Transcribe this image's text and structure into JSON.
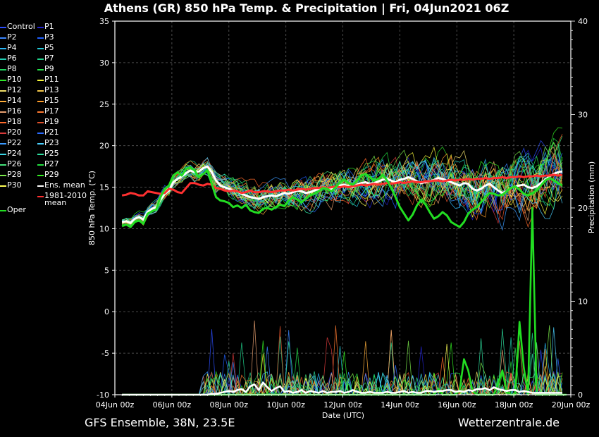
{
  "title": "Athens  (GR)  850 hPa Temp. & Precipitation | Fri, 04Jun2021 06Z",
  "footer": {
    "left": "GFS Ensemble, 38N, 23.5E",
    "right": "Wetterzentrale.de"
  },
  "colors": {
    "background": "#000000",
    "grid": "#555555",
    "ens_mean": "#ffffff",
    "climate_mean": "#ff3030",
    "oper": "#22dd22"
  },
  "legend": [
    {
      "label": "Control",
      "color": "#2b4dff"
    },
    {
      "label": "P1",
      "color": "#2222cc"
    },
    {
      "label": "P2",
      "color": "#3a86ff"
    },
    {
      "label": "P3",
      "color": "#1f5fff"
    },
    {
      "label": "P4",
      "color": "#29b6f6"
    },
    {
      "label": "P5",
      "color": "#22c7d6"
    },
    {
      "label": "P6",
      "color": "#1fd0b5"
    },
    {
      "label": "P7",
      "color": "#20d28c"
    },
    {
      "label": "P8",
      "color": "#1ed760"
    },
    {
      "label": "P9",
      "color": "#25e04a"
    },
    {
      "label": "P10",
      "color": "#2fe82a"
    },
    {
      "label": "P11",
      "color": "#f6f63a"
    },
    {
      "label": "P12",
      "color": "#f2e06a"
    },
    {
      "label": "P13",
      "color": "#f5c84a"
    },
    {
      "label": "P14",
      "color": "#ffae3a"
    },
    {
      "label": "P15",
      "color": "#ff9d2a"
    },
    {
      "label": "P16",
      "color": "#e8a070"
    },
    {
      "label": "P17",
      "color": "#ff7a30"
    },
    {
      "label": "P18",
      "color": "#ff6a2a"
    },
    {
      "label": "P19",
      "color": "#e0502a"
    },
    {
      "label": "P20",
      "color": "#d83a3a"
    },
    {
      "label": "P21",
      "color": "#2a6aff"
    },
    {
      "label": "P22",
      "color": "#3a9aff"
    },
    {
      "label": "P23",
      "color": "#4ad0ff"
    },
    {
      "label": "P24",
      "color": "#3ad6e6"
    },
    {
      "label": "P25",
      "color": "#2ee0a0"
    },
    {
      "label": "P26",
      "color": "#44e27a"
    },
    {
      "label": "P27",
      "color": "#22e040"
    },
    {
      "label": "P28",
      "color": "#7ae84a"
    },
    {
      "label": "P29",
      "color": "#33ee22"
    },
    {
      "label": "P30",
      "color": "#ffff55"
    },
    {
      "label": "Ens. mean",
      "color": "#ffffff"
    },
    {
      "label": "1981-2010\nmean",
      "color": "#ff3030"
    },
    {
      "label": "Oper",
      "color": "#22dd22"
    }
  ],
  "chart_data": {
    "type": "line",
    "xlabel": "Date (UTC)",
    "ylabel": "850 hPa Temp. (°C)",
    "y2label": "Precipitation (mm)",
    "ylim": [
      -10,
      35
    ],
    "y2lim": [
      0,
      40
    ],
    "yticks": [
      -10,
      -5,
      0,
      5,
      10,
      15,
      20,
      25,
      30,
      35
    ],
    "y2ticks": [
      0,
      10,
      20,
      30,
      40
    ],
    "xticks": [
      "04Jun 00z",
      "06Jun 00z",
      "08Jun 00z",
      "10Jun 00z",
      "12Jun 00z",
      "14Jun 00z",
      "16Jun 00z",
      "18Jun 00z",
      "20Jun 00z"
    ],
    "x_start": "04Jun 06z",
    "x_step_hours": 6,
    "grid": true,
    "series": [
      {
        "name": "Ens. mean",
        "axis": "left",
        "color": "#ffffff",
        "width": 3,
        "values": [
          10.8,
          10.9,
          10.7,
          11.2,
          11.4,
          11.1,
          12.0,
          12.4,
          12.6,
          13.5,
          14.2,
          14.6,
          15.6,
          16.0,
          16.3,
          16.7,
          17.0,
          16.8,
          16.9,
          17.3,
          17.5,
          16.8,
          15.8,
          15.2,
          15.0,
          14.8,
          14.6,
          14.5,
          14.2,
          14.0,
          13.8,
          13.7,
          13.6,
          13.8,
          13.9,
          14.0,
          13.9,
          14.1,
          14.3,
          14.2,
          14.4,
          14.6,
          14.5,
          14.3,
          14.4,
          14.6,
          14.8,
          15.0,
          14.9,
          14.8,
          15.0,
          15.2,
          15.3,
          15.1,
          15.0,
          15.3,
          15.5,
          15.6,
          15.4,
          15.5,
          15.7,
          15.9,
          16.0,
          15.8,
          15.6,
          15.9,
          16.0,
          16.2,
          16.0,
          15.7,
          15.5,
          15.6,
          15.7,
          15.9,
          16.1,
          16.0,
          15.8,
          15.6,
          15.4,
          15.2,
          15.5,
          15.4,
          14.8,
          14.6,
          14.8,
          15.2,
          15.4,
          15.0,
          14.6,
          14.3,
          14.5,
          14.9,
          15.1,
          15.2,
          15.3,
          15.0,
          14.9,
          15.1,
          15.5,
          15.9,
          16.3,
          16.6,
          16.8,
          16.9
        ]
      },
      {
        "name": "1981-2010 mean",
        "axis": "left",
        "color": "#ff3030",
        "width": 3,
        "values": [
          14.0,
          14.1,
          14.3,
          14.2,
          14.0,
          14.0,
          14.5,
          14.4,
          14.3,
          14.2,
          14.3,
          14.8,
          14.7,
          14.4,
          14.3,
          14.9,
          15.5,
          15.5,
          15.3,
          15.2,
          15.4,
          15.3,
          14.9,
          14.8,
          14.6,
          14.5,
          14.6,
          14.5,
          14.3,
          14.4,
          14.6,
          14.4,
          14.4,
          14.5,
          14.5,
          14.4,
          14.5,
          14.6,
          14.6,
          14.7,
          14.6,
          14.7,
          14.8,
          14.7,
          14.8,
          14.9,
          14.9,
          15.0,
          14.9,
          15.0,
          15.1,
          15.0,
          15.1,
          15.0,
          15.1,
          15.2,
          15.3,
          15.2,
          15.3,
          15.4,
          15.3,
          15.4,
          15.5,
          15.4,
          15.5,
          15.6,
          15.5,
          15.6,
          15.7,
          15.6,
          15.6,
          15.7,
          15.7,
          15.8,
          15.8,
          15.7,
          15.8,
          15.9,
          15.8,
          15.9,
          15.9,
          16.0,
          15.9,
          16.0,
          16.0,
          16.1,
          16.0,
          16.1,
          16.1,
          16.2,
          16.1,
          16.2,
          16.2,
          16.3,
          16.2,
          16.3,
          16.3,
          16.4,
          16.3,
          16.4,
          16.4,
          16.5,
          16.4,
          16.5
        ]
      },
      {
        "name": "Oper",
        "axis": "left",
        "color": "#22dd22",
        "width": 3,
        "values": [
          10.3,
          10.5,
          10.2,
          10.8,
          11.0,
          10.6,
          11.8,
          12.1,
          12.3,
          13.8,
          14.8,
          15.2,
          16.4,
          16.8,
          16.4,
          17.2,
          17.4,
          17.0,
          16.2,
          16.6,
          17.0,
          15.4,
          13.8,
          13.4,
          13.3,
          13.1,
          12.6,
          12.8,
          12.5,
          12.9,
          12.2,
          12.0,
          11.9,
          12.4,
          12.5,
          12.3,
          12.6,
          12.9,
          12.7,
          13.4,
          13.8,
          13.5,
          13.2,
          13.6,
          14.0,
          14.2,
          14.5,
          14.9,
          14.8,
          14.5,
          15.0,
          15.6,
          15.9,
          15.5,
          15.3,
          15.8,
          16.4,
          16.6,
          16.2,
          15.8,
          16.0,
          16.5,
          15.8,
          14.9,
          13.8,
          12.6,
          11.8,
          11.0,
          11.7,
          12.8,
          13.5,
          12.9,
          12.0,
          11.2,
          11.5,
          12.0,
          11.6,
          10.8,
          10.5,
          10.2,
          10.8,
          11.8,
          12.3,
          12.6,
          13.2,
          13.8,
          14.3,
          14.2,
          14.0,
          14.1,
          14.5,
          14.9,
          15.1,
          14.7,
          14.2,
          14.0,
          14.3,
          14.6,
          15.2,
          15.8,
          16.1,
          15.8,
          15.5,
          15.2
        ]
      },
      {
        "name": "Oper precip",
        "axis": "right",
        "color": "#22dd22",
        "width": 2.6,
        "values": [
          0,
          0,
          0,
          0,
          0,
          0,
          0,
          0,
          0,
          0,
          0,
          0,
          0,
          0,
          0,
          0,
          0,
          0,
          0,
          0,
          0,
          0,
          0,
          0,
          0,
          0,
          0,
          0,
          0,
          0,
          0,
          0,
          0,
          0,
          0,
          0,
          0,
          0,
          0,
          0,
          0,
          0,
          0,
          0,
          0,
          0,
          0,
          0,
          0,
          0,
          0,
          0,
          0,
          0,
          0,
          0,
          0,
          0,
          0,
          0,
          0,
          0,
          0,
          0,
          0,
          0,
          0,
          0,
          0,
          0,
          0,
          0,
          0,
          0,
          0.6,
          0,
          0,
          0,
          0,
          0.5,
          3.8,
          2.6,
          0.4,
          0,
          0,
          0,
          0,
          0,
          1.2,
          2.6,
          0.3,
          0,
          0,
          7.8,
          2.9,
          0,
          20.0,
          0,
          0,
          0,
          0,
          0,
          0,
          0,
          0
        ]
      },
      {
        "name": "Ens. mean precip",
        "axis": "right",
        "color": "#ffffff",
        "width": 2.6,
        "values": [
          0,
          0,
          0,
          0,
          0,
          0,
          0,
          0,
          0,
          0,
          0,
          0,
          0,
          0,
          0,
          0,
          0,
          0,
          0,
          0,
          0,
          0.1,
          0.1,
          0.2,
          0.3,
          0.4,
          0.3,
          0.5,
          0.6,
          0.3,
          0.9,
          1.1,
          0.5,
          1.3,
          0.8,
          0.4,
          0.7,
          0.9,
          0.3,
          0.4,
          0.2,
          0.3,
          0.5,
          0.2,
          0.4,
          0.3,
          0.2,
          0.4,
          0.2,
          0.3,
          0.3,
          0.4,
          0.2,
          0.3,
          0.5,
          0.3,
          0.2,
          0.2,
          0.3,
          0.2,
          0.2,
          0.2,
          0.3,
          0.2,
          0.2,
          0.3,
          0.4,
          0.2,
          0.3,
          0.2,
          0.2,
          0.4,
          0.4,
          0.3,
          0.4,
          0.4,
          0.5,
          0.5,
          0.3,
          0.4,
          0.3,
          0.5,
          0.4,
          0.6,
          0.6,
          0.7,
          0.5,
          0.8,
          0.6,
          0.5,
          0.4,
          0.5,
          0.5,
          0.3,
          0.4,
          0.3,
          0.2,
          0.2,
          0.2,
          0.2,
          0.2,
          0.2,
          0.2,
          0.2
        ]
      }
    ]
  }
}
